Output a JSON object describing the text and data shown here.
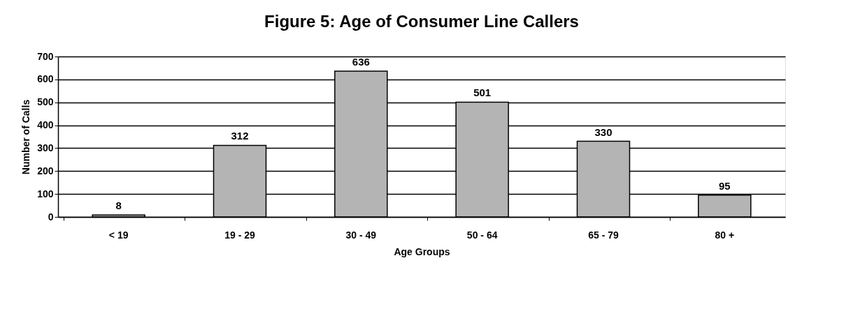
{
  "chart_data": {
    "type": "bar",
    "title": "Figure 5: Age of Consumer Line Callers",
    "xlabel": "Age Groups",
    "ylabel": "Number of Calls",
    "categories": [
      "< 19",
      "19 - 29",
      "30 - 49",
      "50 - 64",
      "65 - 79",
      "80 +"
    ],
    "values": [
      8,
      312,
      636,
      501,
      330,
      95
    ],
    "color": "#b4b4b4",
    "ylim": [
      0,
      700
    ],
    "yticks": [
      0,
      100,
      200,
      300,
      400,
      500,
      600,
      700
    ],
    "grid": "y",
    "data_labels": true
  }
}
